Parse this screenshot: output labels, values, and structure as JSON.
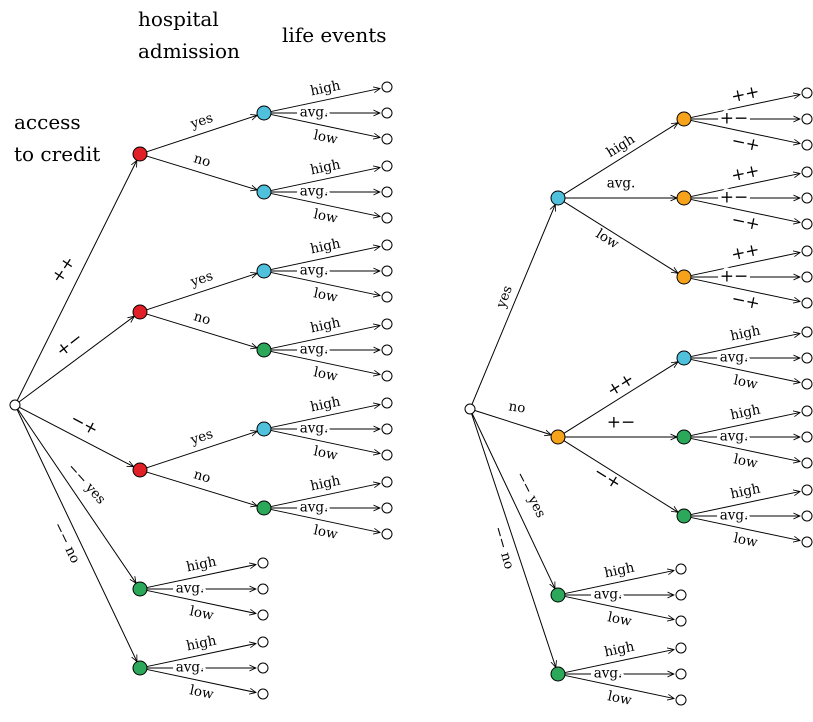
{
  "headers": {
    "access_line1": "access",
    "access_line2": "to credit",
    "hospital_line1": "hospital",
    "hospital_line2": "admission",
    "life_events": "life events"
  },
  "labels": {
    "pp": "++",
    "pm": "+−",
    "mp": "−+",
    "mm": "−−",
    "mm_yes": "−− yes",
    "mm_no": "−− no",
    "yes": "yes",
    "no": "no",
    "high": "high",
    "avg": "avg.",
    "low": "low"
  },
  "colors": {
    "red": "#e01f26",
    "blue": "#4fc1dc",
    "green": "#2ba85a",
    "orange": "#f7a21b",
    "white": "#ffffff"
  },
  "left_tree": {
    "root_color": "white",
    "children": [
      {
        "label": "pp",
        "color": "red",
        "children": [
          {
            "label": "yes",
            "color": "blue",
            "events": "lifeevents"
          },
          {
            "label": "no",
            "color": "blue",
            "events": "lifeevents"
          }
        ]
      },
      {
        "label": "pm",
        "color": "red",
        "children": [
          {
            "label": "yes",
            "color": "blue",
            "events": "lifeevents"
          },
          {
            "label": "no",
            "color": "green",
            "events": "lifeevents"
          }
        ]
      },
      {
        "label": "mp",
        "color": "red",
        "children": [
          {
            "label": "yes",
            "color": "blue",
            "events": "lifeevents"
          },
          {
            "label": "no",
            "color": "green",
            "events": "lifeevents"
          }
        ]
      },
      {
        "label": "mm_yes",
        "color": "green",
        "events": "lifeevents"
      },
      {
        "label": "mm_no",
        "color": "green",
        "events": "lifeevents"
      }
    ]
  },
  "right_tree": {
    "root_color": "white",
    "children": [
      {
        "label": "yes",
        "color": "blue",
        "children": [
          {
            "label": "high",
            "color": "orange",
            "events": "credit"
          },
          {
            "label": "avg",
            "color": "orange",
            "events": "credit"
          },
          {
            "label": "low",
            "color": "orange",
            "events": "credit"
          }
        ]
      },
      {
        "label": "no",
        "color": "orange",
        "children": [
          {
            "label": "pp",
            "color": "blue",
            "events": "lifeevents"
          },
          {
            "label": "pm",
            "color": "green",
            "events": "lifeevents"
          },
          {
            "label": "mp",
            "color": "green",
            "events": "lifeevents"
          }
        ]
      },
      {
        "label": "mm_yes",
        "color": "green",
        "events": "lifeevents"
      },
      {
        "label": "mm_no",
        "color": "green",
        "events": "lifeevents"
      }
    ]
  },
  "leaf_sets": {
    "lifeevents": [
      "high",
      "avg",
      "low"
    ],
    "credit": [
      "pp",
      "pm",
      "mp"
    ]
  }
}
